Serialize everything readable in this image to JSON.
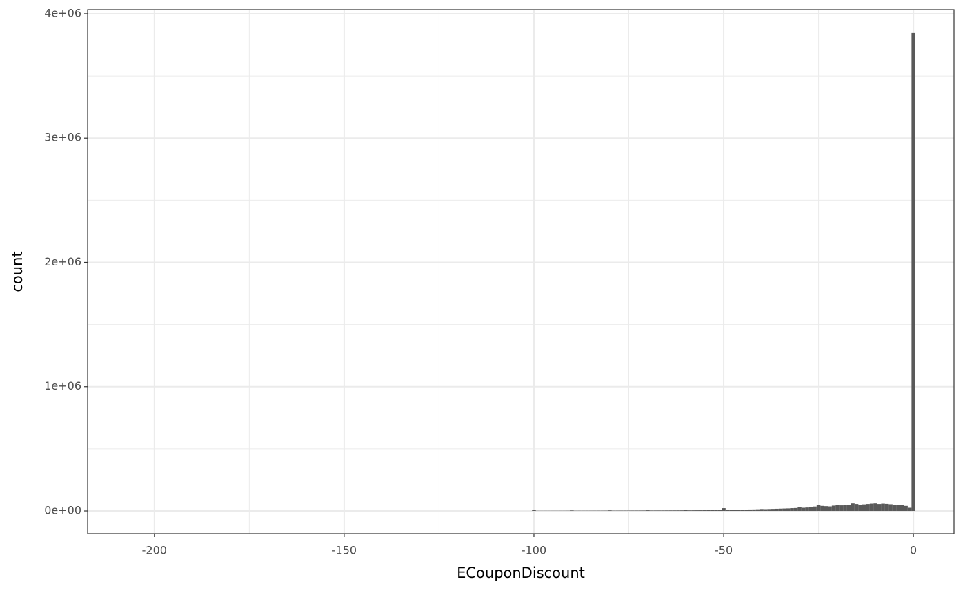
{
  "chart_data": {
    "type": "histogram",
    "x_label": "ECouponDiscount",
    "y_label": "count",
    "bins": [
      -100.5,
      -99.5,
      -98.5,
      -97.5,
      -96.5,
      -95.5,
      -94.5,
      -93.5,
      -92.5,
      -91.5,
      -90.5,
      -89.5,
      -88.5,
      -87.5,
      -86.5,
      -85.5,
      -84.5,
      -83.5,
      -82.5,
      -81.5,
      -80.5,
      -79.5,
      -78.5,
      -77.5,
      -76.5,
      -75.5,
      -74.5,
      -73.5,
      -72.5,
      -71.5,
      -70.5,
      -69.5,
      -68.5,
      -67.5,
      -66.5,
      -65.5,
      -64.5,
      -63.5,
      -62.5,
      -61.5,
      -60.5,
      -59.5,
      -58.5,
      -57.5,
      -56.5,
      -55.5,
      -54.5,
      -53.5,
      -52.5,
      -51.5,
      -50.5,
      -49.5,
      -48.5,
      -47.5,
      -46.5,
      -45.5,
      -44.5,
      -43.5,
      -42.5,
      -41.5,
      -40.5,
      -39.5,
      -38.5,
      -37.5,
      -36.5,
      -35.5,
      -34.5,
      -33.5,
      -32.5,
      -31.5,
      -30.5,
      -29.5,
      -28.5,
      -27.5,
      -26.5,
      -25.5,
      -24.5,
      -23.5,
      -22.5,
      -21.5,
      -20.5,
      -19.5,
      -18.5,
      -17.5,
      -16.5,
      -15.5,
      -14.5,
      -13.5,
      -12.5,
      -11.5,
      -10.5,
      -9.5,
      -8.5,
      -7.5,
      -6.5,
      -5.5,
      -4.5,
      -3.5,
      -2.5,
      -1.5,
      -0.5,
      0.5
    ],
    "values": [
      8000,
      1500,
      1500,
      1600,
      1600,
      1700,
      1700,
      1800,
      1800,
      2000,
      4000,
      2000,
      2100,
      2100,
      2200,
      2200,
      2300,
      2400,
      2400,
      2500,
      4500,
      2600,
      2700,
      2800,
      2900,
      3000,
      3100,
      3200,
      3300,
      3400,
      5000,
      3500,
      3600,
      3700,
      3800,
      4000,
      4100,
      4200,
      4400,
      4500,
      6000,
      4600,
      4800,
      5000,
      5200,
      5400,
      5600,
      5800,
      6000,
      6200,
      22000,
      8000,
      8500,
      9000,
      9500,
      10000,
      11000,
      11500,
      12000,
      13000,
      15000,
      14000,
      15000,
      16000,
      17000,
      18000,
      19000,
      20000,
      22000,
      23000,
      28000,
      25000,
      27000,
      30000,
      35000,
      45000,
      40000,
      38000,
      36000,
      42000,
      45000,
      44000,
      48000,
      50000,
      60000,
      55000,
      50000,
      52000,
      55000,
      58000,
      60000,
      55000,
      58000,
      56000,
      53000,
      50000,
      48000,
      45000,
      40000,
      25000,
      3845000
    ],
    "color": "#595959",
    "xlim": [
      -217.6,
      10.7
    ],
    "xticks": [
      -200,
      -150,
      -100,
      -50,
      0
    ],
    "ylim": [
      -183000,
      4033000
    ],
    "yticks": [
      {
        "value": 0,
        "label": "0e+00"
      },
      {
        "value": 1000000,
        "label": "1e+06"
      },
      {
        "value": 2000000,
        "label": "2e+06"
      },
      {
        "value": 3000000,
        "label": "3e+06"
      },
      {
        "value": 4000000,
        "label": "4e+06"
      }
    ],
    "x_minor_grid": [
      -175,
      -125,
      -75,
      -25
    ],
    "y_minor_grid": [
      500000,
      1500000,
      2500000,
      3500000
    ],
    "grid": true
  }
}
